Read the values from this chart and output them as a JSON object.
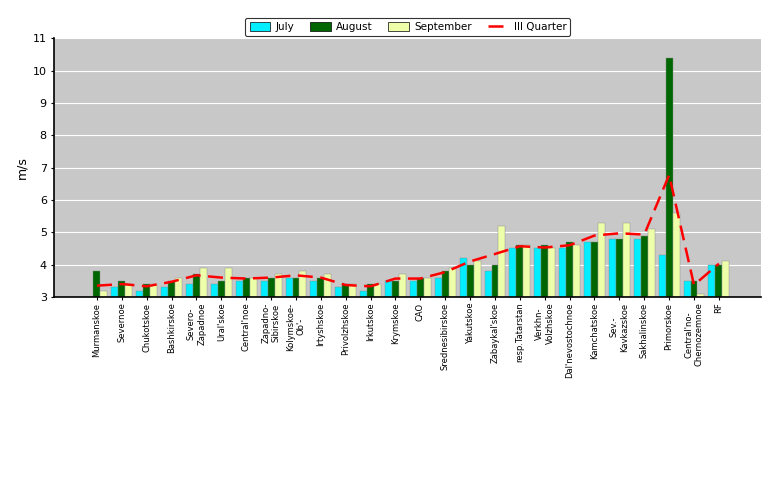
{
  "categories": [
    "Murmanskoe",
    "Severnoe",
    "Chukotskoe",
    "Bashkirskoe",
    "Severo-\nZapadnoe",
    "Ural'skoe",
    "Central'noe",
    "Zapadno-\nSibirskoe",
    "Kolymskoe-\nOb'-",
    "Irtyshskoe",
    "Privolzhskoe",
    "Irkutskoe",
    "Krymskoe",
    "CAO",
    "Srednesibirskoe",
    "Yakutskoe",
    "Zabaykal'skoe",
    "resp.Tatarstan",
    "Verkhn-\nVolzhskoe",
    "Dal'nevostochnoe",
    "Kamchatskoe",
    "Sev.-\nKavkazskoe",
    "Sakhalinskoe",
    "Primorskoe",
    "Central'no-\nChernozemnoe",
    "RF"
  ],
  "july": [
    3.0,
    3.3,
    3.2,
    3.3,
    3.4,
    3.4,
    3.5,
    3.5,
    3.6,
    3.5,
    3.3,
    3.2,
    3.5,
    3.5,
    3.6,
    4.2,
    3.8,
    4.5,
    4.5,
    4.5,
    4.7,
    4.8,
    4.8,
    4.3,
    3.5,
    4.0
  ],
  "august": [
    3.8,
    3.5,
    3.4,
    3.5,
    3.7,
    3.5,
    3.6,
    3.6,
    3.6,
    3.6,
    3.4,
    3.4,
    3.5,
    3.6,
    3.8,
    4.0,
    4.0,
    4.6,
    4.6,
    4.7,
    4.7,
    4.8,
    4.9,
    10.4,
    3.5,
    4.0
  ],
  "september": [
    3.2,
    3.4,
    3.4,
    3.6,
    3.9,
    3.9,
    3.6,
    3.7,
    3.8,
    3.7,
    3.4,
    3.4,
    3.7,
    3.6,
    3.9,
    4.1,
    5.2,
    4.6,
    4.5,
    4.6,
    5.3,
    5.3,
    5.1,
    5.6,
    3.1,
    4.1
  ],
  "quarter": [
    3.35,
    3.4,
    3.33,
    3.47,
    3.67,
    3.6,
    3.57,
    3.6,
    3.67,
    3.6,
    3.37,
    3.33,
    3.57,
    3.57,
    3.77,
    4.1,
    4.33,
    4.57,
    4.53,
    4.6,
    4.9,
    4.97,
    4.93,
    6.77,
    3.37,
    4.03
  ],
  "color_july": "#00EEFF",
  "color_august": "#006600",
  "color_september": "#EEFFAA",
  "color_quarter": "#FF0000",
  "ylabel": "m/s",
  "ymin": 3.0,
  "ymax": 11.0,
  "yticks": [
    3,
    4,
    5,
    6,
    7,
    8,
    9,
    10,
    11
  ],
  "background_color": "#C8C8C8",
  "legend_labels": [
    "July",
    "August",
    "September",
    "III Quarter"
  ],
  "bar_width": 0.28
}
